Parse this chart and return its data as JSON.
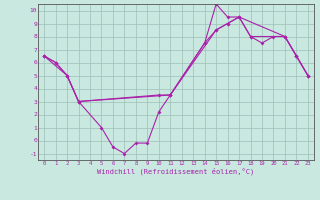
{
  "xlabel": "Windchill (Refroidissement éolien,°C)",
  "bg_color": "#c8e8e0",
  "grid_color": "#9dbfb8",
  "line_color": "#aa22aa",
  "spine_color": "#555555",
  "xlim": [
    -0.5,
    23.5
  ],
  "ylim": [
    -1.5,
    10.5
  ],
  "xticks": [
    0,
    1,
    2,
    3,
    4,
    5,
    6,
    7,
    8,
    9,
    10,
    11,
    12,
    13,
    14,
    15,
    16,
    17,
    18,
    19,
    20,
    21,
    22,
    23
  ],
  "yticks": [
    -1,
    0,
    1,
    2,
    3,
    4,
    5,
    6,
    7,
    8,
    9,
    10
  ],
  "line1_x": [
    0,
    1,
    2,
    3,
    5,
    6,
    7,
    8,
    9,
    10,
    11,
    14,
    15,
    16,
    17,
    18,
    21,
    22,
    23
  ],
  "line1_y": [
    6.5,
    6.0,
    5.0,
    3.0,
    1.0,
    -0.5,
    -1.0,
    -0.2,
    -0.2,
    2.2,
    3.5,
    7.5,
    10.5,
    9.5,
    9.5,
    8.0,
    8.0,
    6.5,
    5.0
  ],
  "line2_x": [
    0,
    2,
    3,
    10,
    11,
    15,
    16,
    17,
    18,
    19,
    20,
    21,
    22,
    23
  ],
  "line2_y": [
    6.5,
    5.0,
    3.0,
    3.5,
    3.5,
    8.5,
    9.0,
    9.5,
    8.0,
    7.5,
    8.0,
    8.0,
    6.5,
    5.0
  ],
  "line3_x": [
    0,
    1,
    2,
    3,
    11,
    14,
    15,
    16,
    17,
    21,
    22,
    23
  ],
  "line3_y": [
    6.5,
    6.0,
    5.0,
    3.0,
    3.5,
    7.5,
    8.5,
    9.0,
    9.5,
    8.0,
    6.5,
    5.0
  ]
}
